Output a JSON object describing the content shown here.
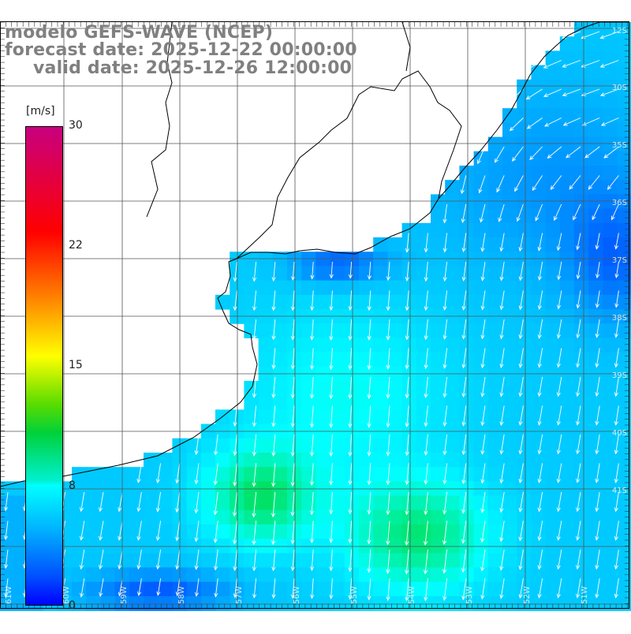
{
  "title": {
    "line1": "modelo GEFS-WAVE (NCEP)",
    "line2": "forecast date: 2025-12-22 00:00:00",
    "line3": "valid date: 2025-12-26 12:00:00"
  },
  "colorbar": {
    "unit": "[m/s]",
    "ticks": [
      "30",
      "22",
      "15",
      "8",
      "0"
    ],
    "tick_values": [
      30,
      22,
      15,
      8,
      0
    ],
    "colors": [
      "#0000ff",
      "#0050ff",
      "#00b4ff",
      "#00ffff",
      "#00d13a",
      "#5adc00",
      "#ffff00",
      "#ff7b00",
      "#ff0000",
      "#c8007f"
    ]
  },
  "axes": {
    "lat_labels": [
      "12S",
      "30S",
      "35S",
      "36S",
      "37S",
      "38S",
      "39S",
      "40S",
      "41S"
    ],
    "lon_labels": [
      "61W",
      "60W",
      "59W",
      "58W",
      "57W",
      "56W",
      "55W",
      "54W",
      "53W",
      "52W",
      "51W"
    ]
  },
  "colors": {
    "land": "#ffffff",
    "coast": "#000000",
    "grid": "#555555",
    "arrow": "#ffffff",
    "title_text": "#808080"
  }
}
